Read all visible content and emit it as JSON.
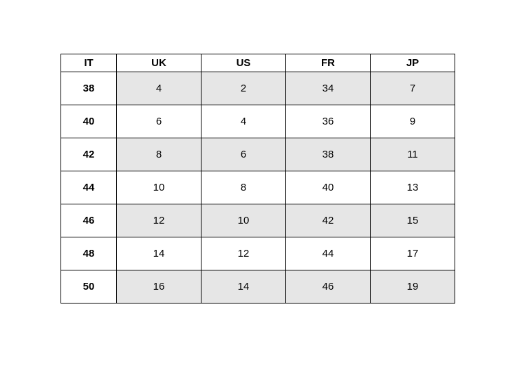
{
  "colors": {
    "background": "#ffffff",
    "border": "#000000",
    "row_shade": "#e6e6e6",
    "text": "#000000"
  },
  "chart_data": {
    "type": "table",
    "title": "",
    "columns": [
      "IT",
      "UK",
      "US",
      "FR",
      "JP"
    ],
    "rows": [
      [
        "38",
        "4",
        "2",
        "34",
        "7"
      ],
      [
        "40",
        "6",
        "4",
        "36",
        "9"
      ],
      [
        "42",
        "8",
        "6",
        "38",
        "11"
      ],
      [
        "44",
        "10",
        "8",
        "40",
        "13"
      ],
      [
        "46",
        "12",
        "10",
        "42",
        "15"
      ],
      [
        "48",
        "14",
        "12",
        "44",
        "17"
      ],
      [
        "50",
        "16",
        "14",
        "46",
        "19"
      ]
    ],
    "shaded_row_indices": [
      0,
      2,
      4,
      6
    ],
    "layout": {
      "first_column_header_style": "bold",
      "header_row_style": "bold",
      "shading_applies_to_columns": [
        "UK",
        "US",
        "FR",
        "JP"
      ]
    }
  }
}
